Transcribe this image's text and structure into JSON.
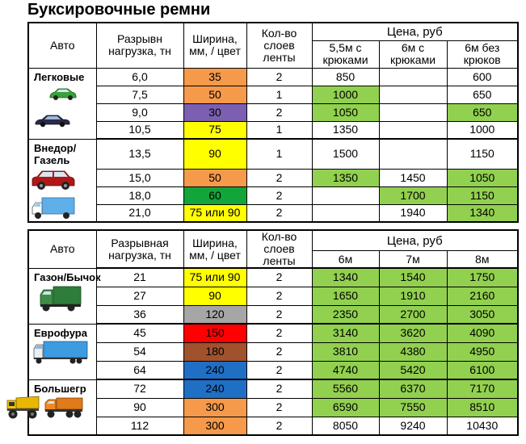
{
  "title": "Буксировочные ремни",
  "colors": {
    "orange": "#f59a4b",
    "yellow": "#ffff00",
    "purple": "#7b5fb0",
    "green": "#12a539",
    "gray": "#a6a6a6",
    "red": "#ff0000",
    "brown": "#a0522d",
    "blue": "#1f6fc5",
    "price_green": "#92d050"
  },
  "table1": {
    "headers": {
      "auto": "Авто",
      "load": "Разрывн нагрузка, тн",
      "width": "Ширина, мм, / цвет",
      "layers": "Кол-во слоев ленты",
      "price": "Цена, руб",
      "p1": "5,5м с крюками",
      "p2": "6м с крюками",
      "p3": "6м без крюков"
    },
    "groups": [
      {
        "label": "Легковые",
        "icons": [
          "green-car-icon",
          "dark-sedan-icon"
        ]
      },
      {
        "label": "Внедор/ Газель",
        "icons": [
          "red-suv-icon",
          "blue-van-icon"
        ]
      }
    ],
    "rows": [
      {
        "load": "6,0",
        "width": "35",
        "width_color": "orange",
        "layers": "2",
        "p1": "850",
        "p2": "",
        "p3": "600",
        "p1_green": false,
        "p2_green": false,
        "p3_green": false
      },
      {
        "load": "7,5",
        "width": "50",
        "width_color": "orange",
        "layers": "1",
        "p1": "1000",
        "p2": "",
        "p3": "650",
        "p1_green": true,
        "p2_green": false,
        "p3_green": false
      },
      {
        "load": "9,0",
        "width": "30",
        "width_color": "purple",
        "layers": "2",
        "p1": "1050",
        "p2": "",
        "p3": "650",
        "p1_green": true,
        "p2_green": false,
        "p3_green": true
      },
      {
        "load": "10,5",
        "width": "75",
        "width_color": "yellow",
        "layers": "1",
        "p1": "1350",
        "p2": "",
        "p3": "1000",
        "p1_green": false,
        "p2_green": false,
        "p3_green": false
      },
      {
        "load": "13,5",
        "width": "90",
        "width_color": "yellow",
        "layers": "1",
        "p1": "1500",
        "p2": "",
        "p3": "1150",
        "p1_green": false,
        "p2_green": false,
        "p3_green": false
      },
      {
        "load": "15,0",
        "width": "50",
        "width_color": "orange",
        "layers": "2",
        "p1": "1350",
        "p2": "1450",
        "p3": "1050",
        "p1_green": true,
        "p2_green": false,
        "p3_green": true
      },
      {
        "load": "18,0",
        "width": "60",
        "width_color": "green",
        "layers": "2",
        "p1": "",
        "p2": "1700",
        "p3": "1150",
        "p1_green": false,
        "p2_green": true,
        "p3_green": true
      },
      {
        "load": "21,0",
        "width": "75 или 90",
        "width_color": "yellow",
        "layers": "2",
        "p1": "",
        "p2": "1940",
        "p3": "1340",
        "p1_green": false,
        "p2_green": false,
        "p3_green": true
      }
    ]
  },
  "table2": {
    "headers": {
      "auto": "Авто",
      "load": "Разрывная нагрузка, тн",
      "width": "Ширина, мм, / цвет",
      "layers": "Кол-во слоев ленты",
      "price": "Цена, руб",
      "p1": "6м",
      "p2": "7м",
      "p3": "8м"
    },
    "groups": [
      {
        "label": "Газон/Бычок",
        "icons": [
          "green-truck-icon"
        ]
      },
      {
        "label": "Еврофура",
        "icons": [
          "blue-semi-truck-icon"
        ]
      },
      {
        "label": "Большегр",
        "icons": [
          "dump-truck-icon",
          "orange-dump-truck-icon"
        ]
      }
    ],
    "rows": [
      {
        "load": "21",
        "width": "75 или 90",
        "width_color": "yellow",
        "layers": "2",
        "p1": "1340",
        "p2": "1540",
        "p3": "1750"
      },
      {
        "load": "27",
        "width": "90",
        "width_color": "yellow",
        "layers": "2",
        "p1": "1650",
        "p2": "1910",
        "p3": "2160"
      },
      {
        "load": "36",
        "width": "120",
        "width_color": "gray",
        "layers": "2",
        "p1": "2350",
        "p2": "2700",
        "p3": "3050"
      },
      {
        "load": "45",
        "width": "150",
        "width_color": "red",
        "layers": "2",
        "p1": "3140",
        "p2": "3620",
        "p3": "4090"
      },
      {
        "load": "54",
        "width": "180",
        "width_color": "brown",
        "layers": "2",
        "p1": "3810",
        "p2": "4380",
        "p3": "4950"
      },
      {
        "load": "64",
        "width": "240",
        "width_color": "blue",
        "layers": "2",
        "p1": "4740",
        "p2": "5420",
        "p3": "6100"
      },
      {
        "load": "72",
        "width": "240",
        "width_color": "blue",
        "layers": "2",
        "p1": "5560",
        "p2": "6370",
        "p3": "7170"
      },
      {
        "load": "90",
        "width": "300",
        "width_color": "orange",
        "layers": "2",
        "p1": "6590",
        "p2": "7550",
        "p3": "8510"
      },
      {
        "load": "112",
        "width": "300",
        "width_color": "orange",
        "layers": "2",
        "p1": "8050",
        "p2": "9240",
        "p3": "10430"
      }
    ],
    "green_rows": 8
  }
}
